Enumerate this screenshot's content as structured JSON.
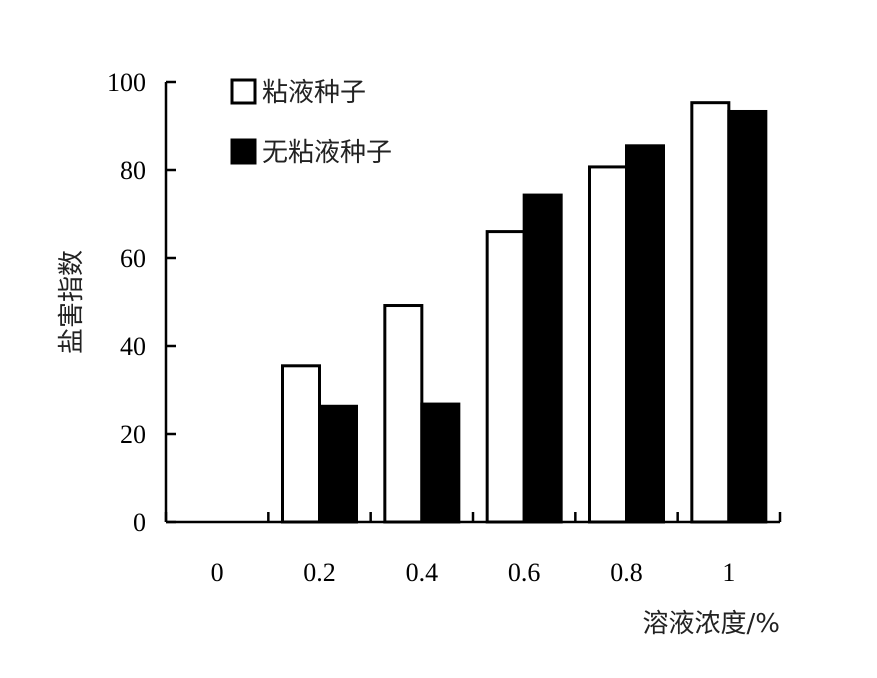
{
  "chart_data": {
    "type": "bar",
    "categories": [
      "0",
      "0.2",
      "0.4",
      "0.6",
      "0.8",
      "1"
    ],
    "series": [
      {
        "name": "粘液种子",
        "values": [
          0,
          35.5,
          49.2,
          66,
          80.7,
          95.3
        ],
        "fill": "#ffffff"
      },
      {
        "name": "无粘液种子",
        "values": [
          0,
          26.3,
          26.8,
          74.3,
          85.5,
          93.3
        ],
        "fill": "#000000"
      }
    ],
    "xlabel": "溶液浓度/%",
    "ylabel": "盐害指数",
    "ylim": [
      0,
      100
    ],
    "yticks": [
      "0",
      "20",
      "40",
      "60",
      "80",
      "100"
    ],
    "grid": false,
    "legend_position": "top-left"
  }
}
